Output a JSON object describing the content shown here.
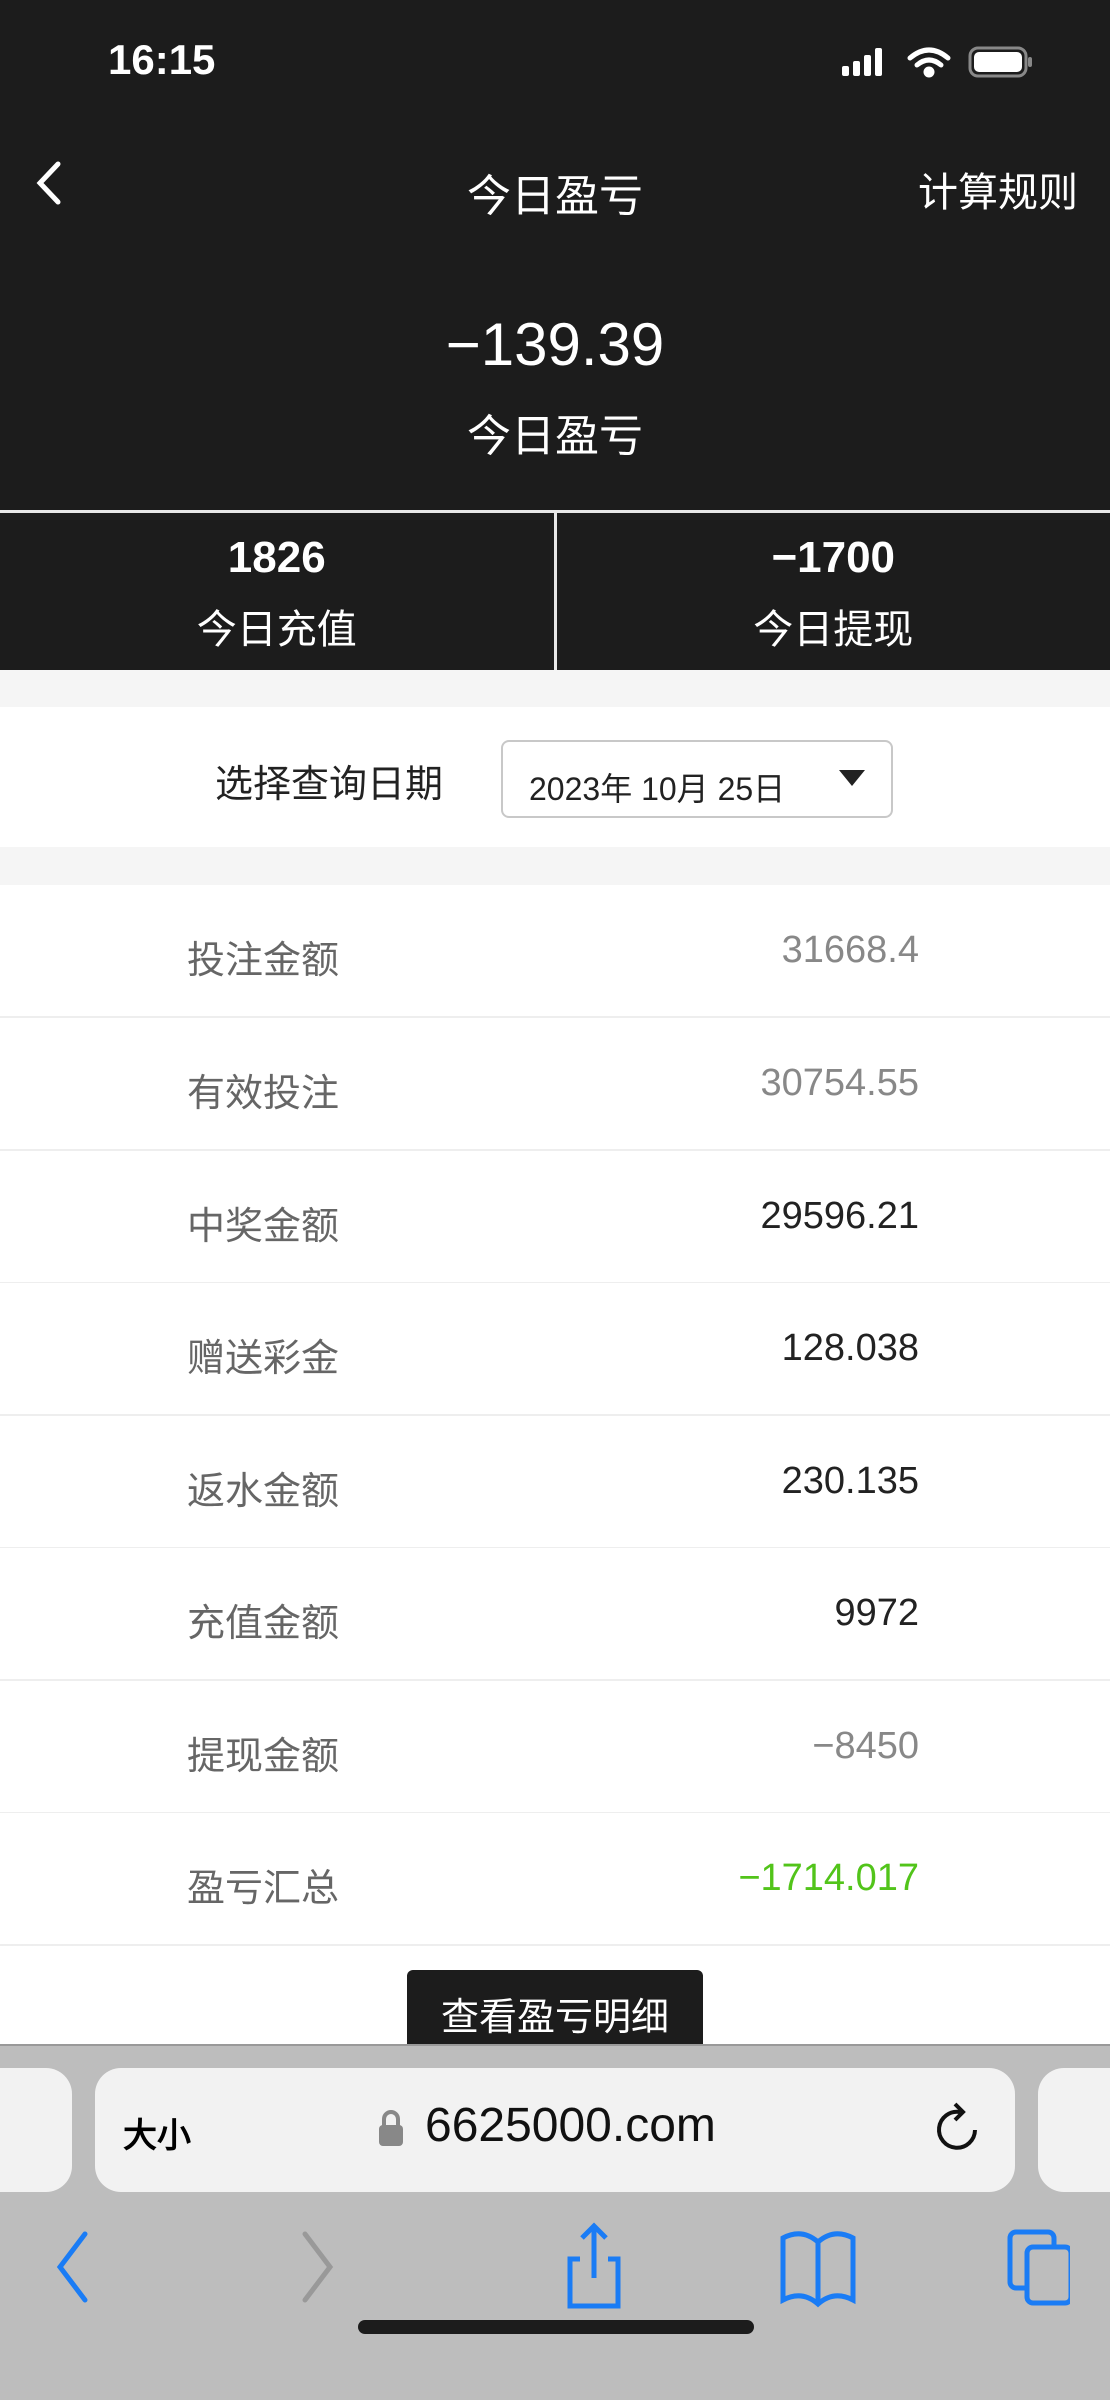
{
  "status_bar": {
    "time": "16:15",
    "icons": [
      "signal-icon",
      "wifi-icon",
      "battery-icon"
    ]
  },
  "nav": {
    "title": "今日盈亏",
    "right_link": "计算规则",
    "back_icon": "chevron-left-icon"
  },
  "summary": {
    "value": "−139.39",
    "label": "今日盈亏"
  },
  "stats": [
    {
      "value": "1826",
      "label": "今日充值"
    },
    {
      "value": "−1700",
      "label": "今日提现"
    }
  ],
  "date_filter": {
    "label": "选择查询日期",
    "selected": "2023年 10月 25日"
  },
  "rows": [
    {
      "label": "投注金额",
      "value": "31668.4",
      "color": "#888888"
    },
    {
      "label": "有效投注",
      "value": "30754.55",
      "color": "#888888"
    },
    {
      "label": "中奖金额",
      "value": "29596.21",
      "color": "#222222"
    },
    {
      "label": "赠送彩金",
      "value": "128.038",
      "color": "#222222"
    },
    {
      "label": "返水金额",
      "value": "230.135",
      "color": "#222222"
    },
    {
      "label": "充值金额",
      "value": "9972",
      "color": "#222222"
    },
    {
      "label": "提现金额",
      "value": "−8450",
      "color": "#888888"
    },
    {
      "label": "盈亏汇总",
      "value": "−1714.017",
      "color": "#52c41a"
    }
  ],
  "detail_button": "查看盈亏明细",
  "browser": {
    "text_size": "大小",
    "url": "6625000.com",
    "accent": "#1a7cf5"
  }
}
